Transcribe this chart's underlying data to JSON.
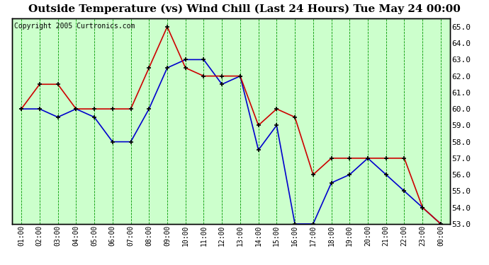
{
  "title": "Outside Temperature (vs) Wind Chill (Last 24 Hours) Tue May 24 00:00",
  "copyright": "Copyright 2005 Curtronics.com",
  "x_labels": [
    "01:00",
    "02:00",
    "03:00",
    "04:00",
    "05:00",
    "06:00",
    "07:00",
    "08:00",
    "09:00",
    "10:00",
    "11:00",
    "12:00",
    "13:00",
    "14:00",
    "15:00",
    "16:00",
    "17:00",
    "18:00",
    "19:00",
    "20:00",
    "21:00",
    "22:00",
    "23:00",
    "00:00"
  ],
  "blue_data": [
    60.0,
    60.0,
    59.5,
    60.0,
    59.5,
    58.0,
    58.0,
    60.0,
    62.5,
    63.0,
    63.0,
    61.5,
    62.0,
    57.5,
    59.0,
    53.0,
    53.0,
    55.5,
    56.0,
    57.0,
    56.0,
    55.0,
    54.0,
    53.0
  ],
  "red_data": [
    60.0,
    61.5,
    61.5,
    60.0,
    60.0,
    60.0,
    60.0,
    62.5,
    65.0,
    62.5,
    62.0,
    62.0,
    62.0,
    59.0,
    60.0,
    59.5,
    56.0,
    57.0,
    57.0,
    57.0,
    57.0,
    57.0,
    54.0,
    53.0
  ],
  "blue_color": "#0000cc",
  "red_color": "#cc0000",
  "marker_color": "#000000",
  "bg_color": "#ffffff",
  "plot_bg_color": "#ccffcc",
  "grid_color": "#009900",
  "border_color": "#000000",
  "ylim_min": 53.0,
  "ylim_max": 65.5,
  "ytick_step": 1.0,
  "title_fontsize": 11,
  "copyright_fontsize": 7,
  "tick_fontsize": 7,
  "ylabel_right_fontsize": 8
}
